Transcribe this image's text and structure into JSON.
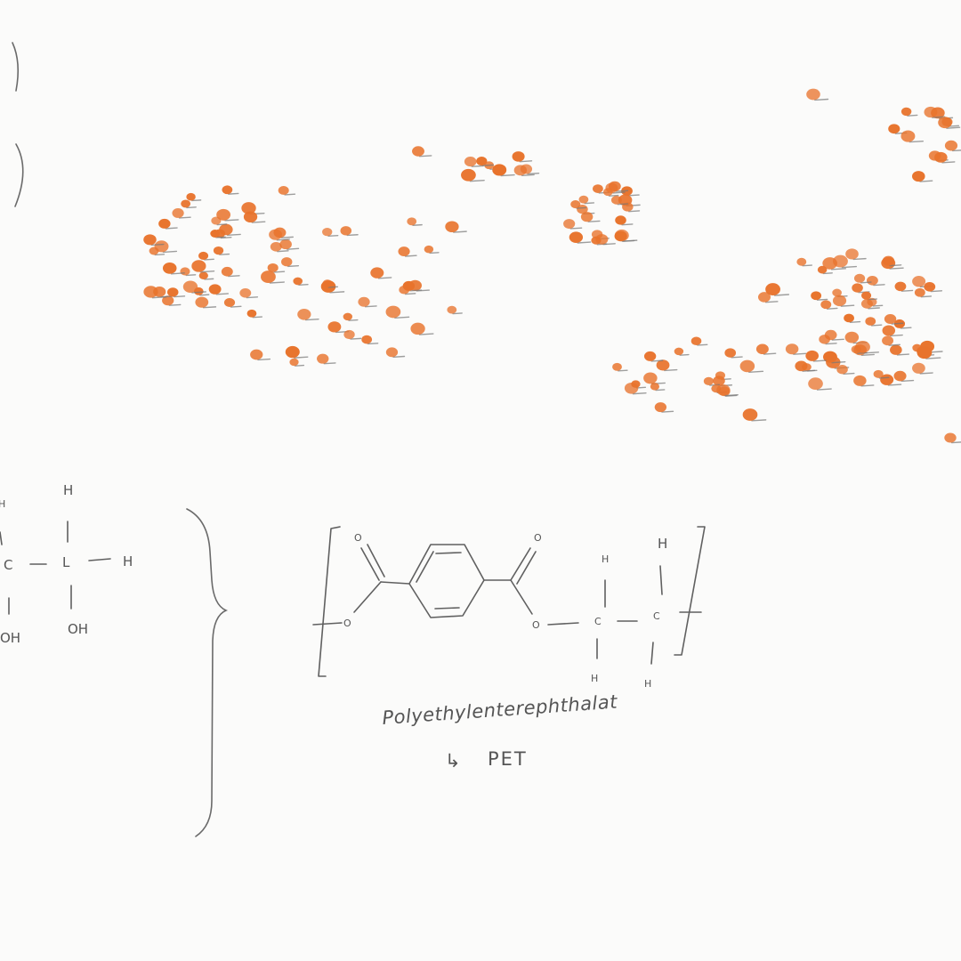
{
  "colors": {
    "paper": "#fbfbfa",
    "pencil": "#606060",
    "dot_fill": "#e8732c",
    "dot_shadow": "#777777"
  },
  "left_fragment": {
    "atoms": {
      "h_top_left": "H",
      "h_top": "H",
      "c_left": "C",
      "c_right": "L",
      "h_right": "H",
      "oh_left": "OH",
      "oh_right": "OH"
    }
  },
  "pet_structure": {
    "atoms": {
      "o_carbonyl_left": "O",
      "o_carbonyl_right": "O",
      "o_ester_left": "O",
      "o_ester_right": "O",
      "c1": "C",
      "c2": "C",
      "h_c1_top": "H",
      "h_c2_top": "H",
      "h_c1_bottom": "H",
      "h_c2_bottom": "H"
    },
    "name": "Polyethylenterephthalat",
    "abbreviation_arrow": "↳",
    "abbreviation": "PET"
  },
  "orange_dots": {
    "description_count": 190,
    "icon": "orange-dot-icon"
  }
}
